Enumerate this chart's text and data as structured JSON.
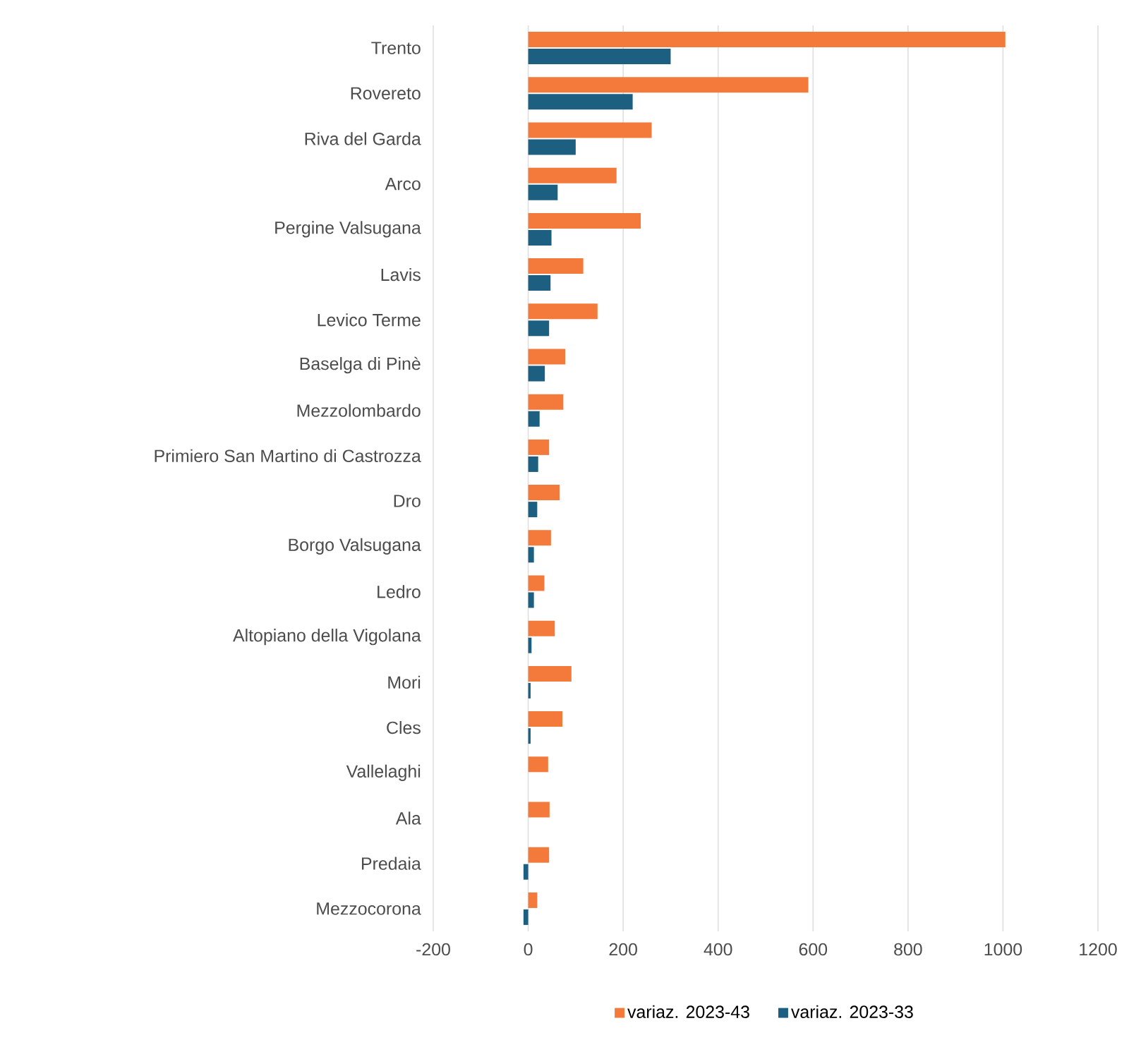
{
  "chart_data": {
    "type": "bar",
    "orientation": "horizontal",
    "categories": [
      "Trento",
      "Rovereto",
      "Riva del Garda",
      "Arco",
      "Pergine Valsugana",
      "Lavis",
      "Levico Terme",
      "Baselga di Pinè",
      "Mezzolombardo",
      "Primiero San Martino di Castrozza",
      "Dro",
      "Borgo Valsugana",
      "Ledro",
      "Altopiano della Vigolana",
      "Mori",
      "Cles",
      "Vallelaghi",
      "Ala",
      "Predaia",
      "Mezzocorona"
    ],
    "series": [
      {
        "name": "variaz. 2023-43",
        "color": "#f47a3c",
        "values": [
          1005,
          590,
          260,
          186,
          237,
          116,
          146,
          78,
          74,
          44,
          66,
          48,
          34,
          56,
          91,
          72,
          42,
          45,
          44,
          19
        ]
      },
      {
        "name": "variaz. 2023-33",
        "color": "#1d5f80",
        "values": [
          300,
          220,
          100,
          62,
          49,
          47,
          44,
          35,
          24,
          21,
          19,
          12,
          12,
          7,
          5,
          5,
          0,
          0,
          -10,
          -10
        ]
      }
    ],
    "xlim": [
      -200,
      1200
    ],
    "xticks": [
      -200,
      0,
      200,
      400,
      600,
      800,
      1000,
      1200
    ],
    "grid": "x",
    "legend": "bottom"
  }
}
